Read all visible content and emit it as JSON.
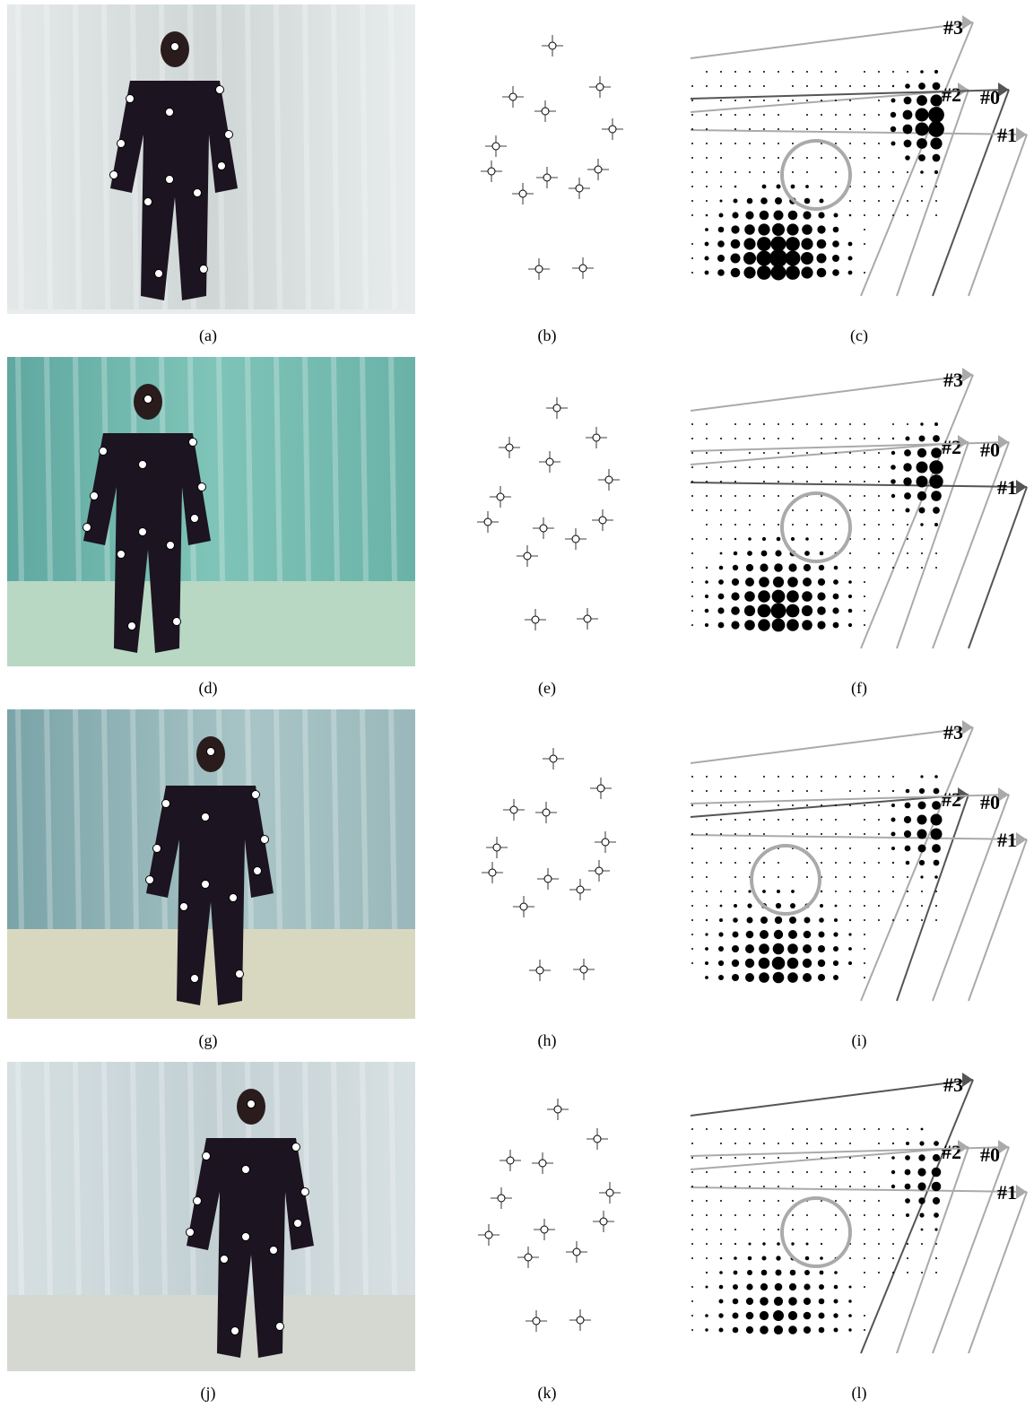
{
  "rows": [
    {
      "photo_caption": "(a)",
      "markers_caption": "(b)",
      "grid_caption": "(c)",
      "camera_labels": [
        "#3",
        "#2",
        "#0",
        "#1"
      ]
    },
    {
      "photo_caption": "(d)",
      "markers_caption": "(e)",
      "grid_caption": "(f)",
      "camera_labels": [
        "#3",
        "#2",
        "#0",
        "#1"
      ]
    },
    {
      "photo_caption": "(g)",
      "markers_caption": "(h)",
      "grid_caption": "(i)",
      "camera_labels": [
        "#3",
        "#2",
        "#0",
        "#1"
      ]
    },
    {
      "photo_caption": "(j)",
      "markers_caption": "(k)",
      "grid_caption": "(l)",
      "camera_labels": [
        "#3",
        "#2",
        "#0",
        "#1"
      ]
    }
  ]
}
